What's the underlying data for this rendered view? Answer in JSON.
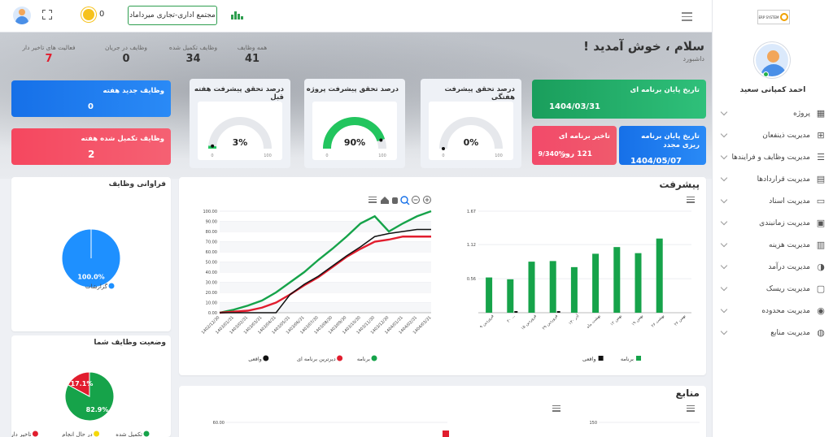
{
  "topbar": {
    "number": "0",
    "company_button": "مجتمع اداری-تجاری میرداماد"
  },
  "sidebar": {
    "logo_text": "ERP SYSTEM",
    "user_name": "احمد کمپانی سعید",
    "items": [
      {
        "label": "پروژه",
        "icon": "grid-icon"
      },
      {
        "label": "مدیریت ذینفعان",
        "icon": "apps-icon"
      },
      {
        "label": "مدیریت وظایف و فرایندها",
        "icon": "tasks-icon"
      },
      {
        "label": "مدیریت قراردادها",
        "icon": "book-icon"
      },
      {
        "label": "مدیریت اسناد",
        "icon": "document-icon"
      },
      {
        "label": "مدیریت زمانبندی",
        "icon": "calendar-icon"
      },
      {
        "label": "مدیریت هزینه",
        "icon": "money-icon"
      },
      {
        "label": "مدیریت درآمد",
        "icon": "pie-icon"
      },
      {
        "label": "مدیریت ریسک",
        "icon": "chat-icon"
      },
      {
        "label": "مدیریت محدوده",
        "icon": "target-icon"
      },
      {
        "label": "مدیریت منابع",
        "icon": "palette-icon"
      }
    ]
  },
  "header": {
    "greeting": "سلام ، خوش آمدید !",
    "breadcrumb": "داشبورد"
  },
  "stats": [
    {
      "label": "همه وظایف",
      "value": "41"
    },
    {
      "label": "وظایف تکمیل شده",
      "value": "34"
    },
    {
      "label": "وظایف در جریان",
      "value": "0"
    },
    {
      "label": "فعالیت های تاخیر دار",
      "value": "7"
    }
  ],
  "cards": {
    "program_end": {
      "title": "تاریخ پایان برنامه ای",
      "value": "1404/03/31"
    },
    "replan_end": {
      "title": "تاریخ پایان برنامه ریزی مجدد",
      "value": "1404/05/07"
    },
    "program_delay": {
      "title": "تاخیر برنامه ای",
      "value_days": "121 روز",
      "value_pct": "-9/340%"
    },
    "weekly_new": {
      "title": "وظایف جدید هفته",
      "value": "0"
    },
    "weekly_done": {
      "title": "وظایف تکمیل شده هفته",
      "value": "2"
    }
  },
  "gauges": [
    {
      "title": "درصد تحقق پیشرفت هفتگی",
      "value": 0,
      "label": "0%",
      "min": "0",
      "max": "100"
    },
    {
      "title": "درصد تحقق پیشرفت پروژه",
      "value": 90,
      "label": "90%",
      "min": "0",
      "max": "100"
    },
    {
      "title": "درصد تحقق پیشرفت هفته قبل",
      "value": 3,
      "label": "3%",
      "min": "0",
      "max": "100"
    }
  ],
  "panels": {
    "frequency_title": "فراوانی وظایف",
    "status_title": "وضعیت وظایف شما",
    "progress_title": "پیشرفت",
    "resources_title": "منابع"
  },
  "chart_data": [
    {
      "type": "pie",
      "title": "فراوانی وظایف",
      "slices": [
        {
          "name": "گزارشات",
          "value": 100,
          "label": "100.0%",
          "color": "#1e90ff"
        }
      ]
    },
    {
      "type": "pie",
      "title": "وضعیت وظایف شما",
      "slices": [
        {
          "name": "تکمیل شده",
          "value": 82.9,
          "label": "82.9%",
          "color": "#16a34a"
        },
        {
          "name": "در حال انجام",
          "value": 0,
          "label": "",
          "color": "#f5d90a"
        },
        {
          "name": "تاخیر دار",
          "value": 17.1,
          "label": "17.1%",
          "color": "#e11d2e"
        }
      ]
    },
    {
      "type": "line",
      "title": "",
      "ylim": [
        0,
        100
      ],
      "yticks": [
        "0.00",
        "10.00",
        "20.00",
        "30.00",
        "40.00",
        "50.00",
        "60.00",
        "70.00",
        "80.00",
        "90.00",
        "100.00"
      ],
      "x": [
        "1402/12/30",
        "1403/01/31",
        "1403/02/31",
        "1403/03/31",
        "1403/04/31",
        "1403/05/31",
        "1403/06/31",
        "1403/07/30",
        "1403/08/30",
        "1403/09/30",
        "1403/10/30",
        "1403/11/30",
        "1403/12/30",
        "1404/01/31",
        "1404/02/31",
        "1404/03/31"
      ],
      "series": [
        {
          "name": "برنامه",
          "color": "#16a34a",
          "values": [
            0,
            3,
            7,
            12,
            20,
            30,
            40,
            52,
            63,
            75,
            88,
            95,
            80,
            88,
            95,
            100
          ]
        },
        {
          "name": "دیرترین برنامه ای",
          "color": "#e11d2e",
          "values": [
            0,
            1,
            2,
            5,
            10,
            18,
            27,
            35,
            45,
            55,
            63,
            70,
            72,
            75,
            75,
            75
          ]
        },
        {
          "name": "واقعی",
          "color": "#111111",
          "values": [
            0,
            0,
            0,
            0,
            0,
            18,
            28,
            36,
            46,
            56,
            65,
            75,
            78,
            80,
            82,
            82
          ]
        }
      ],
      "legend": [
        "برنامه",
        "دیرترین برنامه ای",
        "واقعی"
      ]
    },
    {
      "type": "bar",
      "title": "",
      "ylim": [
        0,
        1.67
      ],
      "yticks": [
        "0.56",
        "1.12",
        "1.67"
      ],
      "categories": [
        "فروردین ۹",
        "۲۰ ...",
        "فروردین ۱۵",
        "فروردین ۲۹",
        "آذر ۱۳۰",
        "بهشت ماه",
        "۱۲ بهمن",
        "بهمن ۱۹",
        "بهشت ۲۶",
        "بهمن ۲۶"
      ],
      "series": [
        {
          "name": "برنامه",
          "color": "#16a34a",
          "values": [
            0.58,
            0.55,
            0.84,
            0.85,
            0.75,
            0.97,
            1.08,
            0.98,
            1.22,
            0
          ]
        },
        {
          "name": "واقعی",
          "color": "#111111",
          "values": [
            0,
            0.01,
            0,
            0.01,
            0,
            0,
            0,
            0,
            0,
            0
          ]
        }
      ],
      "legend": [
        "برنامه",
        "واقعی"
      ]
    },
    {
      "type": "bar",
      "title": "منابع",
      "yticks_left": [
        "60.00"
      ],
      "yticks_right": [
        "150"
      ]
    }
  ]
}
